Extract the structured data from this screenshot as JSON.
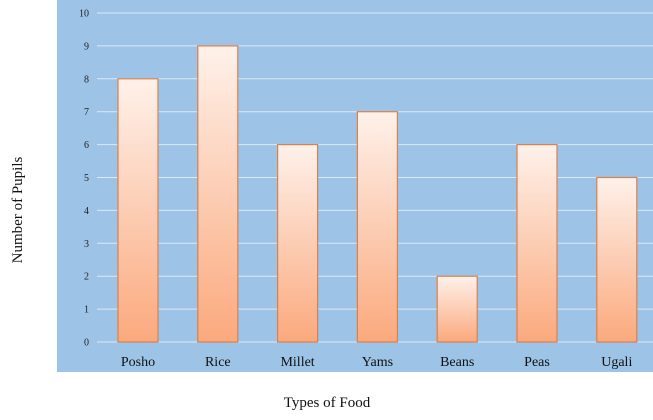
{
  "chart_data": {
    "type": "bar",
    "categories": [
      "Posho",
      "Rice",
      "Millet",
      "Yams",
      "Beans",
      "Peas",
      "Ugali"
    ],
    "values": [
      8,
      9,
      6,
      7,
      2,
      6,
      5
    ],
    "title": "",
    "xlabel": "Types of Food",
    "ylabel": "Number of Pupils",
    "ylim": [
      0,
      10
    ],
    "yticks": [
      "0",
      "1",
      "2",
      "3",
      "4",
      "5",
      "6",
      "7",
      "8",
      "9",
      "10"
    ],
    "grid": true,
    "legend": "none",
    "colors": {
      "plot_background": "#9DC3E6",
      "gridline": "#DCE9F5",
      "bar_fill_top": "#FEF1EA",
      "bar_fill_bottom": "#FBA97D",
      "bar_stroke": "#D9804F"
    }
  }
}
